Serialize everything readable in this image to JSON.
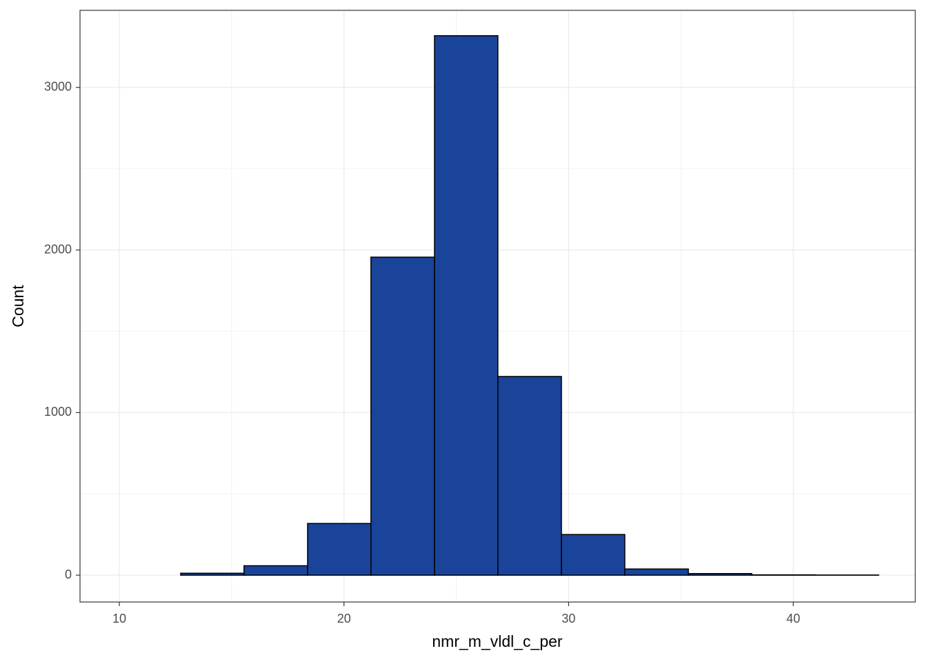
{
  "chart_data": {
    "type": "histogram",
    "x_label": "nmr_m_vldl_c_per",
    "y_label": "Count",
    "bins": [
      9.9,
      12.73,
      15.55,
      18.38,
      21.2,
      24.03,
      26.85,
      29.68,
      32.5,
      35.33,
      38.15,
      40.98,
      43.8
    ],
    "values": [
      0,
      12,
      58,
      318,
      1956,
      3318,
      1222,
      250,
      38,
      10,
      2,
      1
    ],
    "color": "#1a4499",
    "xlim": [
      8.25,
      45.43
    ],
    "ylim": [
      -165,
      3474
    ],
    "xticks": [
      10,
      20,
      30,
      40
    ],
    "yticks": [
      0,
      1000,
      2000,
      3000
    ],
    "grid": true
  }
}
